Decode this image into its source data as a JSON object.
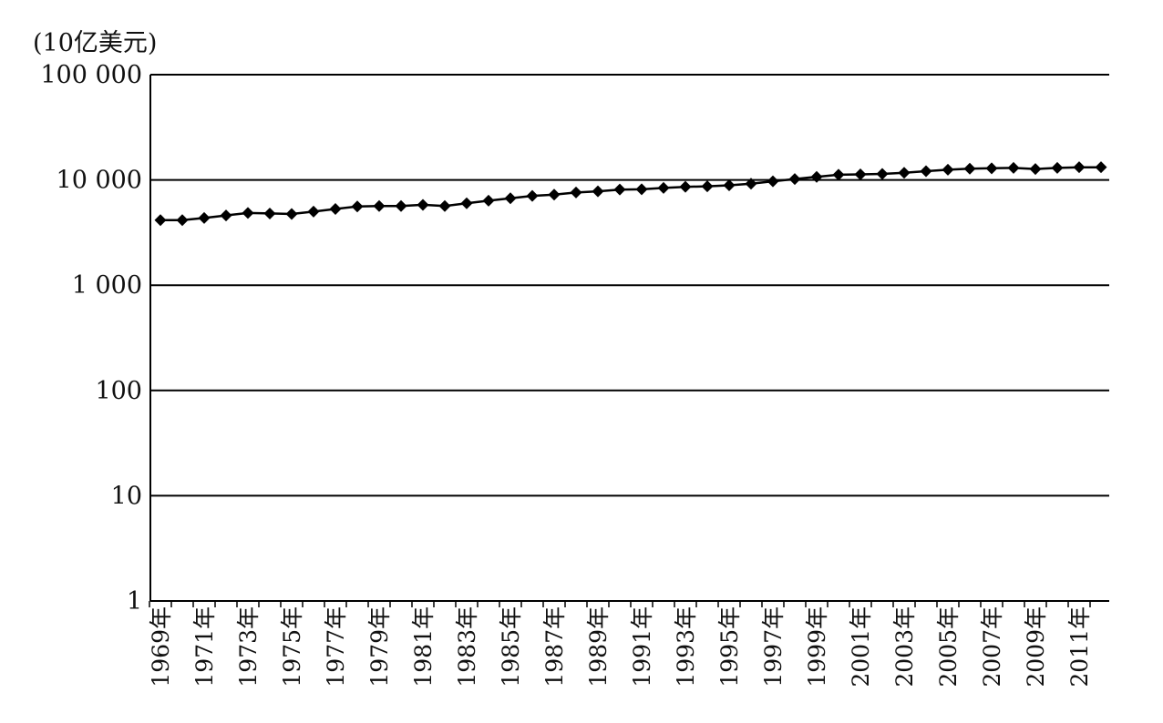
{
  "chart_data": {
    "type": "line",
    "ylabel": "(10亿美元)",
    "xlabel": "",
    "title": "",
    "y_scale": "log",
    "ylim": [
      1,
      100000
    ],
    "y_ticks": [
      1,
      10,
      100,
      1000,
      10000,
      100000
    ],
    "y_tick_labels": [
      "1",
      "10",
      "100",
      "1 000",
      "10 000",
      "100 000"
    ],
    "x": [
      1969,
      1970,
      1971,
      1972,
      1973,
      1974,
      1975,
      1976,
      1977,
      1978,
      1979,
      1980,
      1981,
      1982,
      1983,
      1984,
      1985,
      1986,
      1987,
      1988,
      1989,
      1990,
      1991,
      1992,
      1993,
      1994,
      1995,
      1996,
      1997,
      1998,
      1999,
      2000,
      2001,
      2002,
      2003,
      2004,
      2005,
      2006,
      2007,
      2008,
      2009,
      2010,
      2011,
      2012
    ],
    "x_tick_labels": [
      "1969年",
      "1971年",
      "1973年",
      "1975年",
      "1977年",
      "1979年",
      "1981年",
      "1983年",
      "1985年",
      "1987年",
      "1989年",
      "1991年",
      "1993年",
      "1995年",
      "1997年",
      "1999年",
      "2001年",
      "2003年",
      "2005年",
      "2007年",
      "2009年",
      "2011年"
    ],
    "series": [
      {
        "marker": "diamond",
        "color": "#000000",
        "values": [
          4150,
          4150,
          4350,
          4600,
          4850,
          4800,
          4750,
          5000,
          5300,
          5600,
          5650,
          5650,
          5800,
          5650,
          6000,
          6350,
          6700,
          7050,
          7250,
          7600,
          7800,
          8100,
          8150,
          8400,
          8600,
          8700,
          8900,
          9200,
          9700,
          10200,
          10700,
          11200,
          11300,
          11400,
          11700,
          12100,
          12500,
          12800,
          12900,
          13000,
          12700,
          13000,
          13200,
          13200
        ]
      }
    ],
    "grid": "horizontal",
    "colors": {
      "line": "#000000",
      "grid": "#000000",
      "text": "#111111"
    }
  }
}
